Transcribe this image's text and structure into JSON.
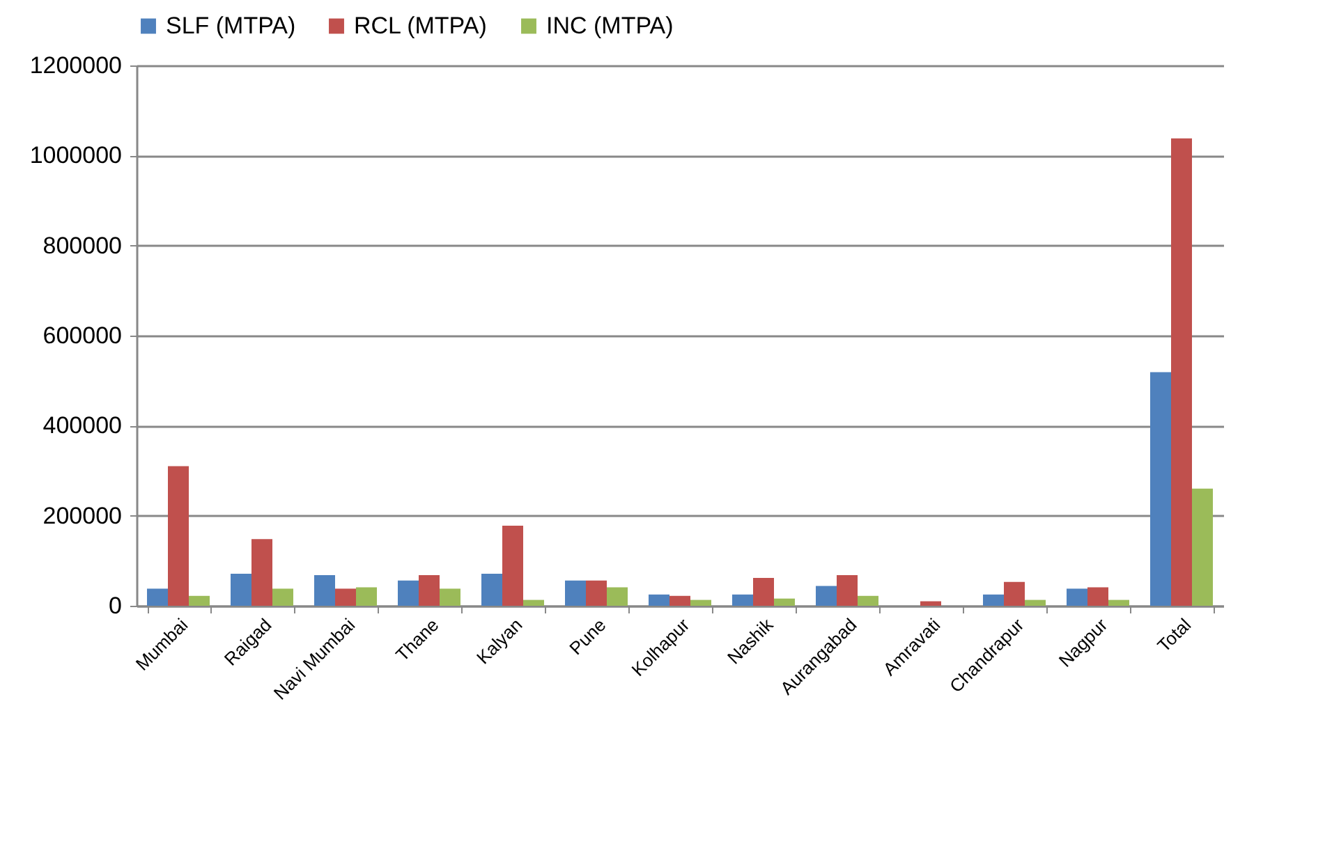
{
  "chart_data": {
    "type": "bar",
    "categories": [
      "Mumbai",
      "Raigad",
      "Navi Mumbai",
      "Thane",
      "Kalyan",
      "Pune",
      "Kolhapur",
      "Nashik",
      "Aurangabad",
      "Amravati",
      "Chandrapur",
      "Nagpur",
      "Total"
    ],
    "series": [
      {
        "name": "SLF (MTPA)",
        "color": "#4f81bd",
        "values": [
          38000,
          71000,
          68000,
          56000,
          71000,
          56000,
          25000,
          25000,
          44000,
          0,
          25000,
          38000,
          519000
        ]
      },
      {
        "name": "RCL (MTPA)",
        "color": "#c0504d",
        "values": [
          310000,
          148000,
          38000,
          68000,
          178000,
          56000,
          22000,
          62000,
          68000,
          10000,
          53000,
          41000,
          1038000
        ]
      },
      {
        "name": "INC (MTPA)",
        "color": "#9bbb59",
        "values": [
          22000,
          38000,
          41000,
          38000,
          13000,
          41000,
          13000,
          16000,
          22000,
          0,
          13000,
          13000,
          260000
        ]
      }
    ],
    "ylim": [
      0,
      1200000
    ],
    "yticks": [
      0,
      200000,
      400000,
      600000,
      800000,
      1000000,
      1200000
    ],
    "grid": "y",
    "legend": "top"
  }
}
